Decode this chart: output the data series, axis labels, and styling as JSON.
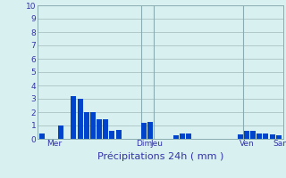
{
  "title": "",
  "xlabel": "Précipitations 24h ( mm )",
  "ylabel": "",
  "background_color": "#d8f0f0",
  "bar_color": "#0044cc",
  "grid_color": "#b0c8c8",
  "axis_label_color": "#3333aa",
  "tick_label_color": "#3333aa",
  "ylim": [
    0,
    10
  ],
  "yticks": [
    0,
    1,
    2,
    3,
    4,
    5,
    6,
    7,
    8,
    9,
    10
  ],
  "bar_values": [
    0.4,
    0.0,
    0.0,
    1.0,
    0.0,
    3.2,
    3.0,
    2.0,
    2.0,
    1.5,
    1.5,
    0.6,
    0.7,
    0.0,
    0.0,
    0.0,
    1.2,
    1.3,
    0.0,
    0.0,
    0.0,
    0.3,
    0.4,
    0.4,
    0.0,
    0.0,
    0.0,
    0.0,
    0.0,
    0.0,
    0.0,
    0.35,
    0.6,
    0.6,
    0.4,
    0.4,
    0.35,
    0.3
  ],
  "day_labels": [
    "Mer",
    "Dim",
    "Jeu",
    "Ven",
    "Sam"
  ],
  "day_positions": [
    2,
    16,
    18,
    32,
    37.5
  ],
  "vline_positions": [
    15.5,
    17.5,
    31.5
  ],
  "xlabel_fontsize": 8,
  "tick_fontsize": 6.5
}
